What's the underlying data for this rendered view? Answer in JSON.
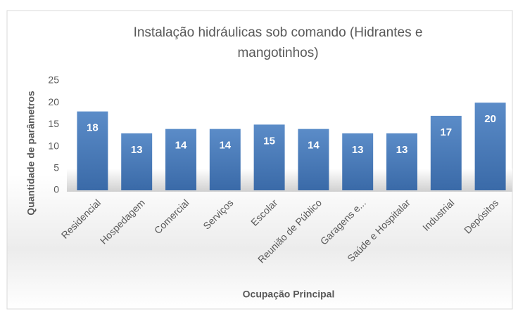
{
  "chart_data": {
    "type": "bar",
    "title": "Instalação hidráulicas sob comando (Hidrantes e mangotinhos)",
    "x_label": "Ocupação Principal",
    "y_label": "Quantidade de parâmetros",
    "categories": [
      "Residencial",
      "Hospedagem",
      "Comercial",
      "Serviços",
      "Escolar",
      "Reunião de Público",
      "Garagens e...",
      "Saúde e Hospitalar",
      "Industrial",
      "Depósitos"
    ],
    "values": [
      18,
      13,
      14,
      14,
      15,
      14,
      13,
      13,
      17,
      20
    ],
    "color": "#4f81bd",
    "ylim": [
      0,
      25
    ],
    "yticks": [
      0,
      5,
      10,
      15,
      20,
      25
    ],
    "grid": false
  }
}
